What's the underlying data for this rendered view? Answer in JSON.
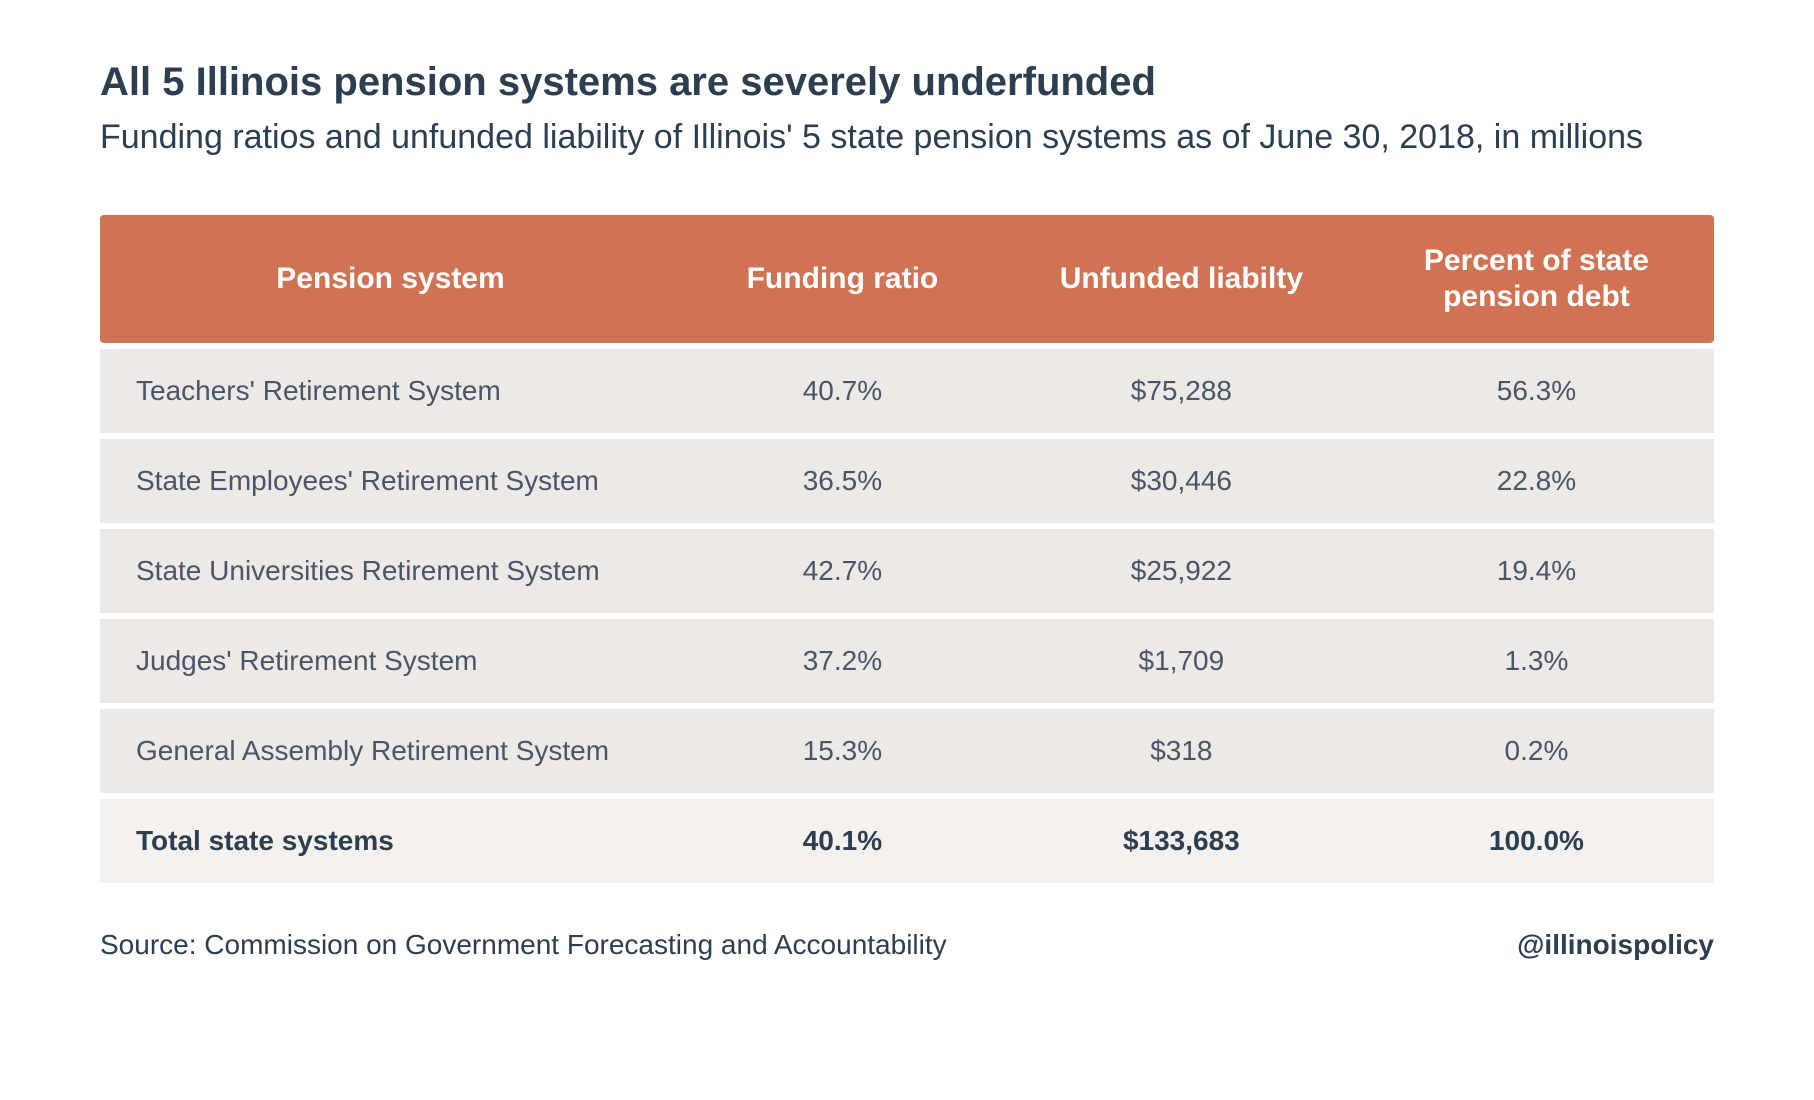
{
  "title": "All 5 Illinois pension systems are severely underfunded",
  "subtitle": "Funding ratios and unfunded liability of Illinois' 5 state pension systems as of June 30, 2018, in millions",
  "table": {
    "type": "table",
    "header_bg": "#d07354",
    "header_text_color": "#ffffff",
    "row_bg": "#ece9e6",
    "total_row_bg": "#f5f1ee",
    "text_color": "#4a5568",
    "total_text_color": "#2c3e50",
    "header_fontsize": 30,
    "cell_fontsize": 28,
    "columns": [
      {
        "label": "Pension system",
        "align": "left",
        "width_pct": 36
      },
      {
        "label": "Funding ratio",
        "align": "center",
        "width_pct": 20
      },
      {
        "label": "Unfunded liabilty",
        "align": "center",
        "width_pct": 22
      },
      {
        "label": "Percent of state pension debt",
        "align": "center",
        "width_pct": 22
      }
    ],
    "rows": [
      {
        "system": "Teachers' Retirement System",
        "ratio": "40.7%",
        "unfunded": "$75,288",
        "percent": "56.3%"
      },
      {
        "system": "State Employees' Retirement System",
        "ratio": "36.5%",
        "unfunded": "$30,446",
        "percent": "22.8%"
      },
      {
        "system": "State Universities Retirement System",
        "ratio": "42.7%",
        "unfunded": "$25,922",
        "percent": "19.4%"
      },
      {
        "system": "Judges' Retirement System",
        "ratio": "37.2%",
        "unfunded": "$1,709",
        "percent": "1.3%"
      },
      {
        "system": "General Assembly Retirement System",
        "ratio": "15.3%",
        "unfunded": "$318",
        "percent": "0.2%"
      }
    ],
    "total_row": {
      "system": "Total state systems",
      "ratio": "40.1%",
      "unfunded": "$133,683",
      "percent": "100.0%"
    }
  },
  "source": "Source: Commission on Government Forecasting and Accountability",
  "handle": "@illinoispolicy",
  "colors": {
    "background": "#ffffff",
    "title_color": "#2c3e50"
  }
}
